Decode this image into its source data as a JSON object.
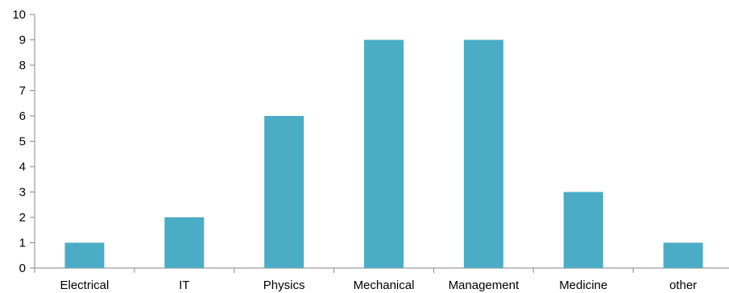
{
  "chart_data": {
    "type": "bar",
    "title": "",
    "xlabel": "",
    "ylabel": "",
    "categories": [
      "Electrical",
      "IT",
      "Physics",
      "Mechanical",
      "Management",
      "Medicine",
      "other"
    ],
    "values": [
      1,
      2,
      6,
      9,
      9,
      3,
      1
    ],
    "ylim": [
      0,
      10
    ],
    "yticks": [
      0,
      1,
      2,
      3,
      4,
      5,
      6,
      7,
      8,
      9,
      10
    ],
    "grid": false,
    "legend": "none",
    "colors": {
      "bar": "#4BACC6",
      "axis": "#868686"
    }
  }
}
